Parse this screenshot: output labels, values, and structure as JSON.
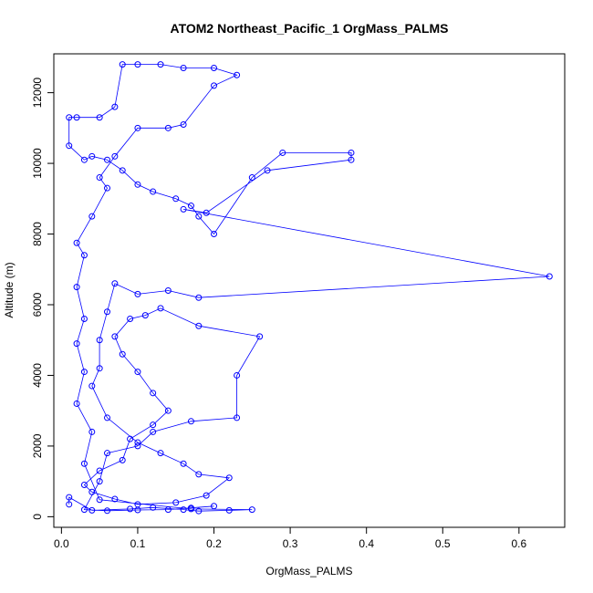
{
  "chart_data": {
    "type": "scatter",
    "title": "ATOM2 Northeast_Pacific_1 OrgMass_PALMS",
    "xlabel": "OrgMass_PALMS",
    "ylabel": "Altitude (m)",
    "xlim": [
      -0.01,
      0.66
    ],
    "ylim": [
      -300,
      13100
    ],
    "x_ticks": [
      0.0,
      0.1,
      0.2,
      0.3,
      0.4,
      0.5,
      0.6
    ],
    "x_tick_labels": [
      "0.0",
      "0.1",
      "0.2",
      "0.3",
      "0.4",
      "0.5",
      "0.6"
    ],
    "y_ticks": [
      0,
      2000,
      4000,
      6000,
      8000,
      10000,
      12000
    ],
    "y_tick_labels": [
      "0",
      "2000",
      "4000",
      "6000",
      "8000",
      "10000",
      "12000"
    ],
    "grid": false,
    "legend": "none",
    "marker": "open-circle",
    "connect_points": true,
    "color": "#0000ff",
    "series": [
      {
        "points": [
          [
            0.01,
            350
          ],
          [
            0.01,
            550
          ],
          [
            0.04,
            180
          ],
          [
            0.09,
            220
          ],
          [
            0.12,
            260
          ],
          [
            0.16,
            200
          ],
          [
            0.18,
            160
          ],
          [
            0.22,
            180
          ],
          [
            0.25,
            200
          ],
          [
            0.17,
            220
          ],
          [
            0.05,
            480
          ],
          [
            0.03,
            1500
          ],
          [
            0.04,
            2400
          ],
          [
            0.02,
            3200
          ],
          [
            0.03,
            4100
          ],
          [
            0.02,
            4900
          ],
          [
            0.03,
            5600
          ],
          [
            0.02,
            6500
          ],
          [
            0.03,
            7400
          ],
          [
            0.02,
            7750
          ],
          [
            0.04,
            8500
          ],
          [
            0.06,
            9300
          ],
          [
            0.05,
            9600
          ],
          [
            0.07,
            10200
          ],
          [
            0.1,
            11000
          ],
          [
            0.14,
            11000
          ],
          [
            0.16,
            11100
          ],
          [
            0.2,
            12200
          ],
          [
            0.23,
            12500
          ],
          [
            0.2,
            12700
          ],
          [
            0.16,
            12700
          ],
          [
            0.13,
            12800
          ],
          [
            0.1,
            12800
          ],
          [
            0.08,
            12800
          ],
          [
            0.07,
            11600
          ],
          [
            0.05,
            11300
          ],
          [
            0.02,
            11300
          ],
          [
            0.01,
            11300
          ],
          [
            0.01,
            10500
          ],
          [
            0.03,
            10100
          ],
          [
            0.04,
            10200
          ],
          [
            0.06,
            10100
          ],
          [
            0.08,
            9800
          ],
          [
            0.1,
            9400
          ],
          [
            0.12,
            9200
          ],
          [
            0.15,
            9000
          ],
          [
            0.17,
            8800
          ],
          [
            0.18,
            8500
          ],
          [
            0.2,
            8000
          ],
          [
            0.25,
            9600
          ],
          [
            0.29,
            10300
          ],
          [
            0.38,
            10300
          ],
          [
            0.38,
            10100
          ],
          [
            0.27,
            9800
          ],
          [
            0.19,
            8600
          ],
          [
            0.16,
            8700
          ],
          [
            0.64,
            6800
          ],
          [
            0.18,
            6200
          ],
          [
            0.14,
            6400
          ],
          [
            0.1,
            6300
          ],
          [
            0.07,
            6600
          ],
          [
            0.06,
            5800
          ],
          [
            0.05,
            5000
          ],
          [
            0.05,
            4200
          ],
          [
            0.04,
            3700
          ],
          [
            0.06,
            2800
          ],
          [
            0.1,
            2100
          ],
          [
            0.13,
            1800
          ],
          [
            0.16,
            1500
          ],
          [
            0.18,
            1200
          ],
          [
            0.22,
            1100
          ],
          [
            0.19,
            600
          ],
          [
            0.15,
            400
          ],
          [
            0.1,
            350
          ],
          [
            0.07,
            500
          ],
          [
            0.04,
            700
          ],
          [
            0.03,
            900
          ],
          [
            0.05,
            1300
          ],
          [
            0.08,
            1600
          ],
          [
            0.09,
            2200
          ],
          [
            0.12,
            2600
          ],
          [
            0.14,
            3000
          ],
          [
            0.12,
            3500
          ],
          [
            0.1,
            4100
          ],
          [
            0.08,
            4600
          ],
          [
            0.07,
            5100
          ],
          [
            0.09,
            5600
          ],
          [
            0.11,
            5700
          ],
          [
            0.13,
            5900
          ],
          [
            0.18,
            5400
          ],
          [
            0.26,
            5100
          ],
          [
            0.23,
            4000
          ],
          [
            0.23,
            2800
          ],
          [
            0.17,
            2700
          ],
          [
            0.12,
            2400
          ],
          [
            0.1,
            2000
          ],
          [
            0.06,
            1800
          ],
          [
            0.05,
            1000
          ],
          [
            0.03,
            200
          ],
          [
            0.06,
            170
          ],
          [
            0.1,
            190
          ],
          [
            0.14,
            200
          ],
          [
            0.17,
            250
          ],
          [
            0.2,
            300
          ]
        ]
      }
    ]
  }
}
